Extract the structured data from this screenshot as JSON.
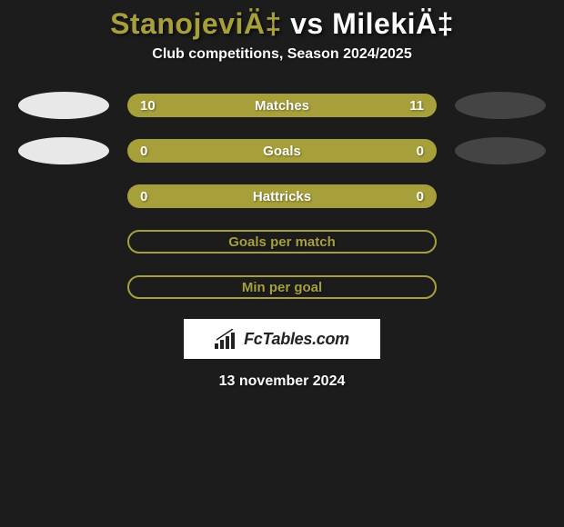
{
  "header": {
    "player1": "StanojeviÄ‡",
    "vs": "vs",
    "player2": "MilekiÄ‡",
    "subtitle": "Club competitions, Season 2024/2025"
  },
  "stats": [
    {
      "left_value": "10",
      "label": "Matches",
      "right_value": "11",
      "filled": true,
      "show_ellipses": true,
      "bar_color": "#a7a03a",
      "left_ellipse_color": "#e8e8e8",
      "right_ellipse_color": "#444444"
    },
    {
      "left_value": "0",
      "label": "Goals",
      "right_value": "0",
      "filled": true,
      "show_ellipses": true,
      "bar_color": "#a7a03a",
      "left_ellipse_color": "#e8e8e8",
      "right_ellipse_color": "#444444"
    },
    {
      "left_value": "0",
      "label": "Hattricks",
      "right_value": "0",
      "filled": true,
      "show_ellipses": false,
      "bar_color": "#a7a03a"
    },
    {
      "label": "Goals per match",
      "filled": false,
      "show_ellipses": false,
      "border_color": "#a7a03a"
    },
    {
      "label": "Min per goal",
      "filled": false,
      "show_ellipses": false,
      "border_color": "#a7a03a"
    }
  ],
  "footer": {
    "logo_text": "FcTables.com",
    "date": "13 november 2024"
  },
  "colors": {
    "background": "#1c1c1c",
    "accent": "#a7a03a",
    "text": "#ffffff"
  }
}
